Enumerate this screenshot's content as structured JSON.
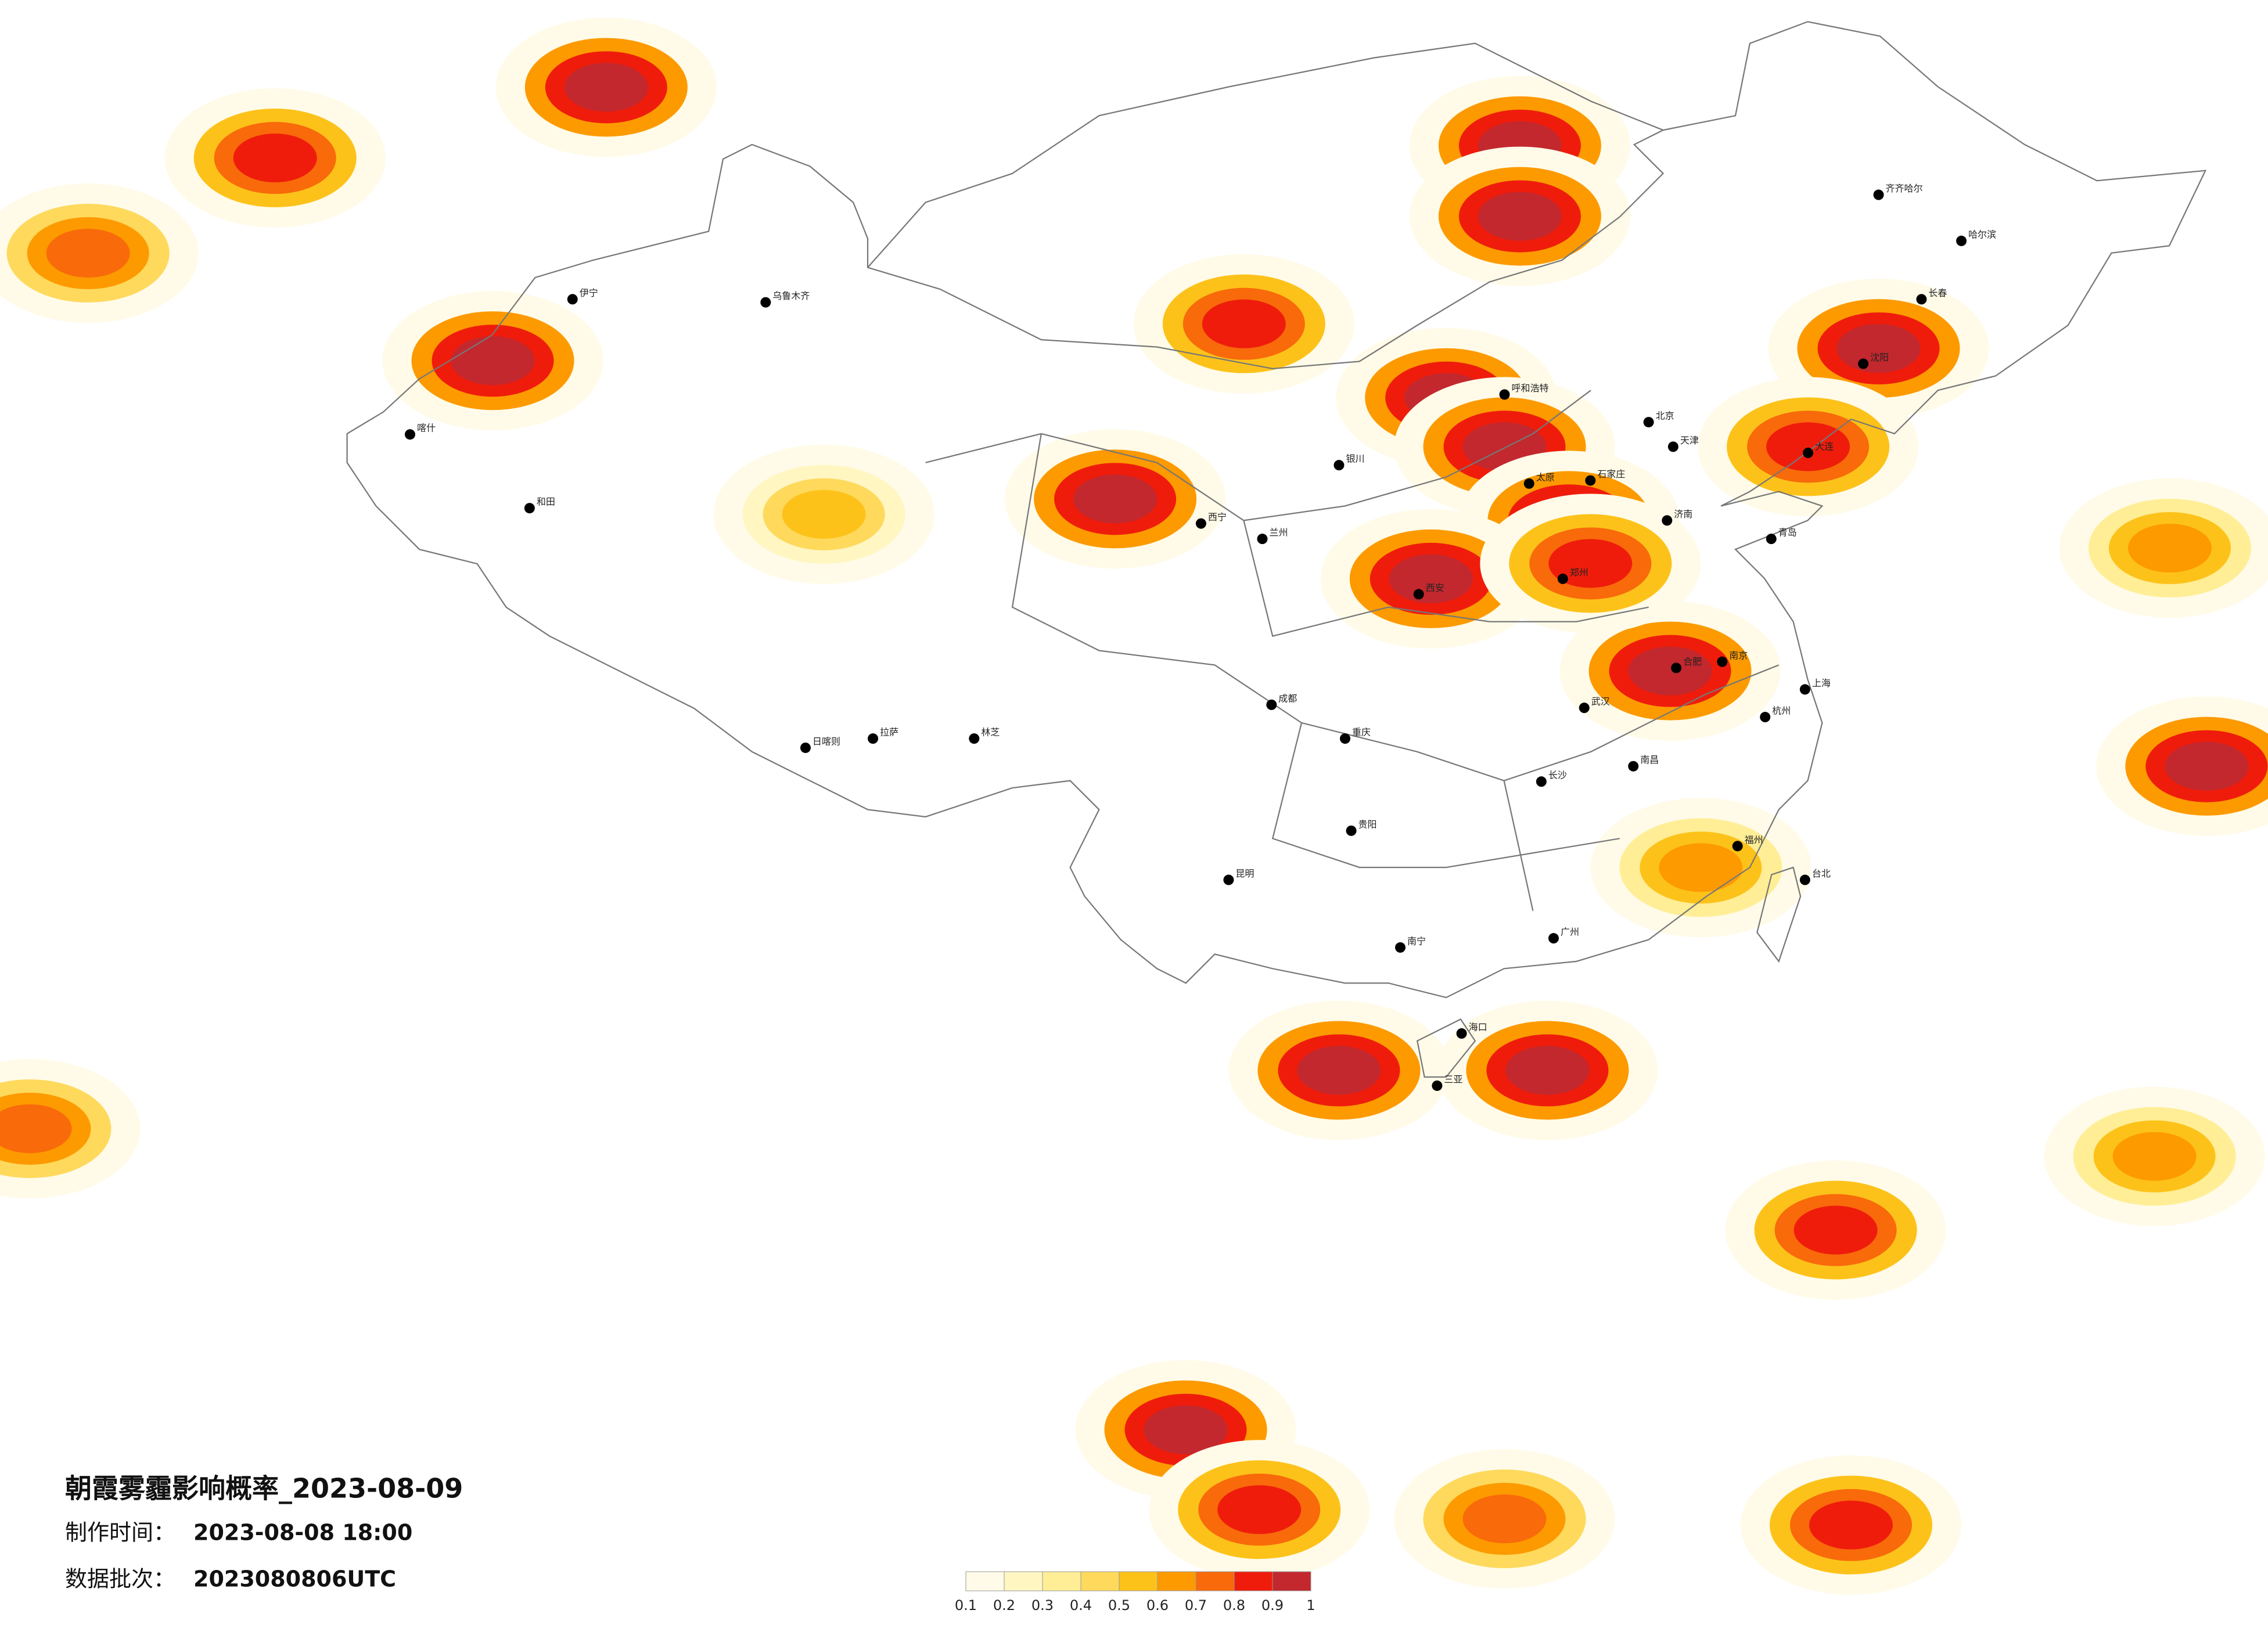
{
  "map": {
    "title": "朝霞雾霾影响概率_2023-08-09",
    "production_time": {
      "label": "制作时间：",
      "value": "2023-08-08 18:00"
    },
    "batch": {
      "label": "数据批次：",
      "value": "2023080806UTC"
    },
    "colorbar": {
      "ticks": [
        0.1,
        0.2,
        0.3,
        0.4,
        0.5,
        0.6,
        0.7,
        0.8,
        0.9,
        1
      ],
      "colors": [
        "#fffbe8",
        "#fff6c2",
        "#ffee96",
        "#fed95c",
        "#fdc21a",
        "#fd9a00",
        "#f86a0a",
        "#ef1c0c",
        "#c2282e"
      ]
    },
    "hotspots": [
      {
        "lon": 109.8,
        "lat": 40.7,
        "probability": 1
      },
      {
        "lon": 111.7,
        "lat": 39.1,
        "probability": 0.9
      },
      {
        "lon": 99.0,
        "lat": 37.4,
        "probability": 1
      },
      {
        "lon": 117.1,
        "lat": 31.8,
        "probability": 1
      },
      {
        "lon": 106.3,
        "lat": 18.8,
        "probability": 0.9
      },
      {
        "lon": 113.1,
        "lat": 18.8,
        "probability": 1
      },
      {
        "lon": 112.2,
        "lat": 48.9,
        "probability": 0.9
      },
      {
        "lon": 112.2,
        "lat": 46.6,
        "probability": 1
      },
      {
        "lon": 78.7,
        "lat": 41.9,
        "probability": 0.9
      },
      {
        "lon": 82.4,
        "lat": 50.8,
        "probability": 0.9
      },
      {
        "lon": 71.6,
        "lat": 48.5,
        "probability": 0.8
      },
      {
        "lon": 123.9,
        "lat": 42.3,
        "probability": 0.9
      },
      {
        "lon": 121.6,
        "lat": 39.1,
        "probability": 0.8
      },
      {
        "lon": 113.8,
        "lat": 36.7,
        "probability": 0.9
      },
      {
        "lon": 109.3,
        "lat": 34.8,
        "probability": 0.9
      },
      {
        "lon": 103.2,
        "lat": 43.1,
        "probability": 0.8
      },
      {
        "lon": 134.6,
        "lat": 28.7,
        "probability": 0.9
      },
      {
        "lon": 122.5,
        "lat": 13.6,
        "probability": 0.8
      },
      {
        "lon": 101.3,
        "lat": 7.1,
        "probability": 0.9
      },
      {
        "lon": 103.7,
        "lat": 4.5,
        "probability": 0.8
      },
      {
        "lon": 111.7,
        "lat": 4.2,
        "probability": 0.7
      },
      {
        "lon": 63.6,
        "lat": 16.9,
        "probability": 0.7
      },
      {
        "lon": 133.4,
        "lat": 35.8,
        "probability": 0.6
      },
      {
        "lon": 89.5,
        "lat": 36.9,
        "probability": 0.5
      },
      {
        "lon": 118.1,
        "lat": 25.4,
        "probability": 0.6
      },
      {
        "lon": 132.9,
        "lat": 16.0,
        "probability": 0.6
      },
      {
        "lon": 123.0,
        "lat": 4.0,
        "probability": 0.8
      },
      {
        "lon": 65.5,
        "lat": 45.4,
        "probability": 0.7
      },
      {
        "lon": 114.5,
        "lat": 35.3,
        "probability": 0.8
      }
    ],
    "cities": [
      {
        "name": "北京",
        "lon": 116.4,
        "lat": 39.9
      },
      {
        "name": "天津",
        "lon": 117.2,
        "lat": 39.1
      },
      {
        "name": "石家庄",
        "lon": 114.5,
        "lat": 38.0
      },
      {
        "name": "太原",
        "lon": 112.5,
        "lat": 37.9
      },
      {
        "name": "呼和浩特",
        "lon": 111.7,
        "lat": 40.8
      },
      {
        "name": "沈阳",
        "lon": 123.4,
        "lat": 41.8
      },
      {
        "name": "长春",
        "lon": 125.3,
        "lat": 43.9
      },
      {
        "name": "哈尔滨",
        "lon": 126.6,
        "lat": 45.8
      },
      {
        "name": "齐齐哈尔",
        "lon": 123.9,
        "lat": 47.3
      },
      {
        "name": "济南",
        "lon": 117.0,
        "lat": 36.7
      },
      {
        "name": "青岛",
        "lon": 120.4,
        "lat": 36.1
      },
      {
        "name": "大连",
        "lon": 121.6,
        "lat": 38.9
      },
      {
        "name": "郑州",
        "lon": 113.6,
        "lat": 34.8
      },
      {
        "name": "西安",
        "lon": 108.9,
        "lat": 34.3
      },
      {
        "name": "兰州",
        "lon": 103.8,
        "lat": 36.1
      },
      {
        "name": "西宁",
        "lon": 101.8,
        "lat": 36.6
      },
      {
        "name": "银川",
        "lon": 106.3,
        "lat": 38.5
      },
      {
        "name": "乌鲁木齐",
        "lon": 87.6,
        "lat": 43.8
      },
      {
        "name": "伊宁",
        "lon": 81.3,
        "lat": 43.9
      },
      {
        "name": "喀什",
        "lon": 76.0,
        "lat": 39.5
      },
      {
        "name": "和田",
        "lon": 79.9,
        "lat": 37.1
      },
      {
        "name": "拉萨",
        "lon": 91.1,
        "lat": 29.6
      },
      {
        "name": "日喀则",
        "lon": 88.9,
        "lat": 29.3
      },
      {
        "name": "林芝",
        "lon": 94.4,
        "lat": 29.6
      },
      {
        "name": "成都",
        "lon": 104.1,
        "lat": 30.7
      },
      {
        "name": "重庆",
        "lon": 106.5,
        "lat": 29.6
      },
      {
        "name": "贵阳",
        "lon": 106.7,
        "lat": 26.6
      },
      {
        "name": "昆明",
        "lon": 102.7,
        "lat": 25.0
      },
      {
        "name": "南宁",
        "lon": 108.3,
        "lat": 22.8
      },
      {
        "name": "广州",
        "lon": 113.3,
        "lat": 23.1
      },
      {
        "name": "长沙",
        "lon": 112.9,
        "lat": 28.2
      },
      {
        "name": "武汉",
        "lon": 114.3,
        "lat": 30.6
      },
      {
        "name": "南昌",
        "lon": 115.9,
        "lat": 28.7
      },
      {
        "name": "合肥",
        "lon": 117.3,
        "lat": 31.9
      },
      {
        "name": "南京",
        "lon": 118.8,
        "lat": 32.1
      },
      {
        "name": "上海",
        "lon": 121.5,
        "lat": 31.2
      },
      {
        "name": "杭州",
        "lon": 120.2,
        "lat": 30.3
      },
      {
        "name": "福州",
        "lon": 119.3,
        "lat": 26.1
      },
      {
        "name": "台北",
        "lon": 121.5,
        "lat": 25.0
      },
      {
        "name": "海口",
        "lon": 110.3,
        "lat": 20.0
      },
      {
        "name": "三亚",
        "lon": 109.5,
        "lat": 18.3
      }
    ]
  }
}
